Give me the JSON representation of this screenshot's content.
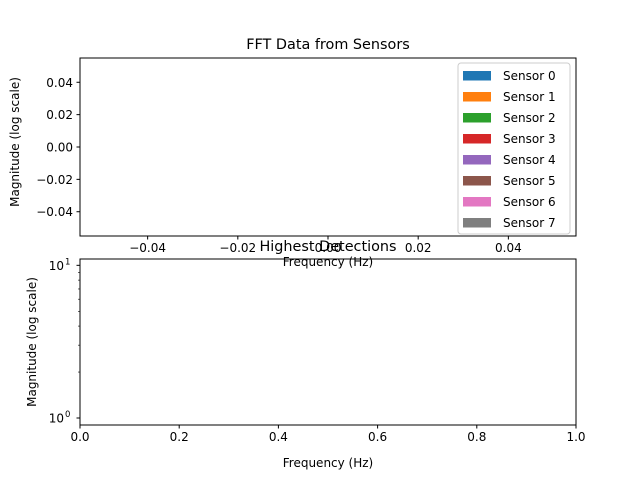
{
  "chart_data": [
    {
      "type": "bar",
      "title": "FFT Data from Sensors",
      "xlabel": "Frequency (Hz)",
      "ylabel": "Magnitude (log scale)",
      "xlim": [
        -0.055,
        0.055
      ],
      "ylim": [
        -0.055,
        0.055
      ],
      "xticks": [
        {
          "value": -0.04,
          "label": "−0.04"
        },
        {
          "value": -0.02,
          "label": "−0.02"
        },
        {
          "value": 0.0,
          "label": "0.00"
        },
        {
          "value": 0.02,
          "label": "0.02"
        },
        {
          "value": 0.04,
          "label": "0.04"
        }
      ],
      "yticks": [
        {
          "value": 0.04,
          "label": "0.04"
        },
        {
          "value": 0.02,
          "label": "0.02"
        },
        {
          "value": 0.0,
          "label": "0.00"
        },
        {
          "value": -0.02,
          "label": "−0.02"
        },
        {
          "value": -0.04,
          "label": "−0.04"
        }
      ],
      "legend_position": "top-right",
      "series": [
        {
          "name": "Sensor 0",
          "color": "#1f77b4",
          "x": [],
          "values": []
        },
        {
          "name": "Sensor 1",
          "color": "#ff7f0e",
          "x": [],
          "values": []
        },
        {
          "name": "Sensor 2",
          "color": "#2ca02c",
          "x": [],
          "values": []
        },
        {
          "name": "Sensor 3",
          "color": "#d62728",
          "x": [],
          "values": []
        },
        {
          "name": "Sensor 4",
          "color": "#9467bd",
          "x": [],
          "values": []
        },
        {
          "name": "Sensor 5",
          "color": "#8c564b",
          "x": [],
          "values": []
        },
        {
          "name": "Sensor 6",
          "color": "#e377c2",
          "x": [],
          "values": []
        },
        {
          "name": "Sensor 7",
          "color": "#7f7f7f",
          "x": [],
          "values": []
        }
      ],
      "grid": false
    },
    {
      "type": "scatter",
      "title": "Highest Detections",
      "xlabel": "Frequency (Hz)",
      "ylabel": "Magnitude (log scale)",
      "xlim": [
        0,
        1
      ],
      "ylim": [
        0.9,
        11
      ],
      "yscale": "log",
      "xticks": [
        {
          "value": 0.0,
          "label": "0.0"
        },
        {
          "value": 0.2,
          "label": "0.2"
        },
        {
          "value": 0.4,
          "label": "0.4"
        },
        {
          "value": 0.6,
          "label": "0.6"
        },
        {
          "value": 0.8,
          "label": "0.8"
        },
        {
          "value": 1.0,
          "label": "1.0"
        }
      ],
      "yticks": [
        {
          "value": 1,
          "label": "10",
          "exp": "0"
        },
        {
          "value": 10,
          "label": "10",
          "exp": "1"
        }
      ],
      "series": [],
      "grid": false
    }
  ]
}
